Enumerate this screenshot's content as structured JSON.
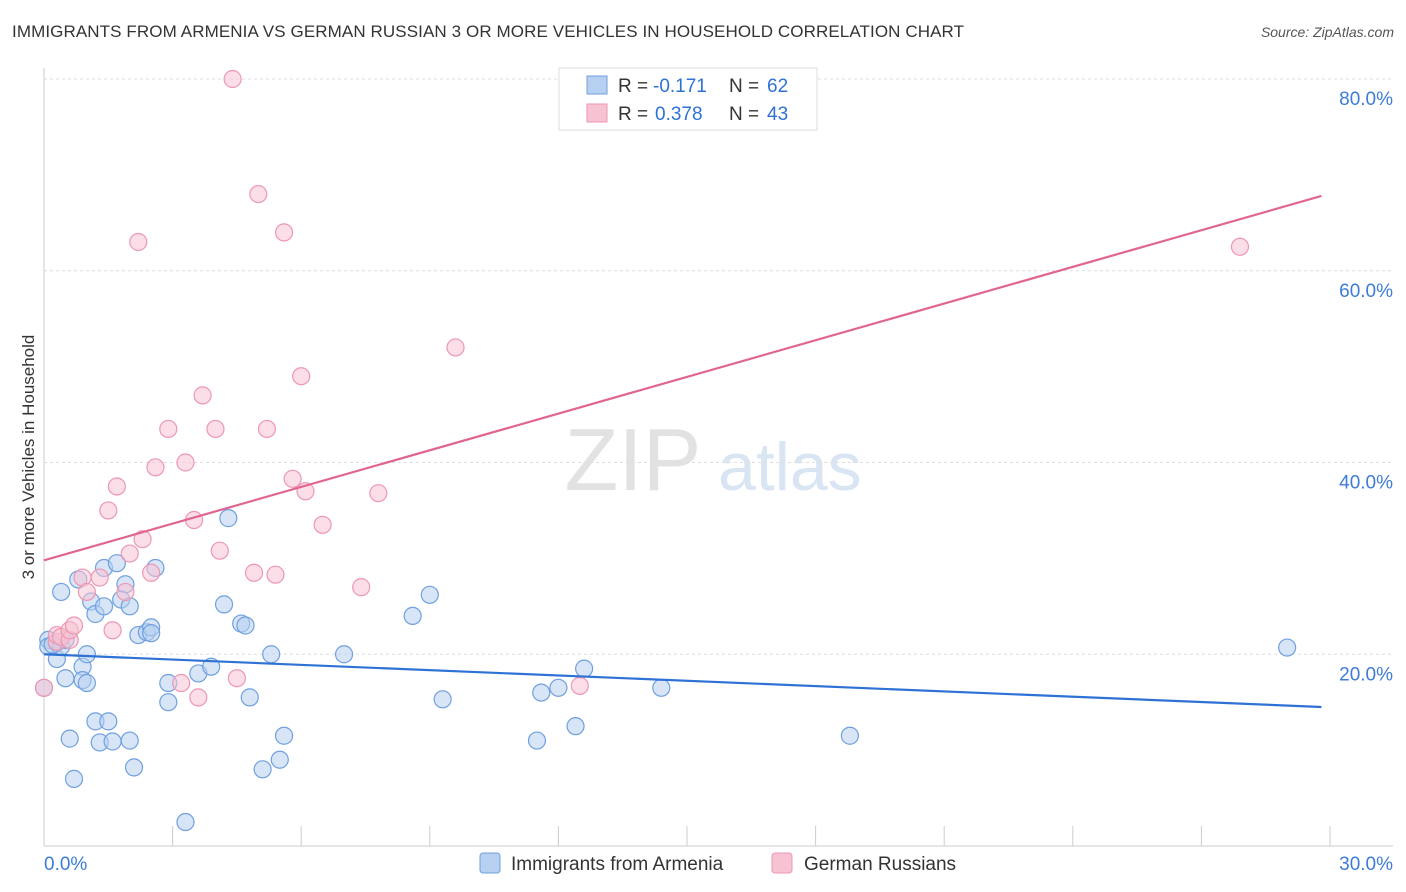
{
  "chart_data": {
    "type": "scatter",
    "title": "IMMIGRANTS FROM ARMENIA VS GERMAN RUSSIAN 3 OR MORE VEHICLES IN HOUSEHOLD CORRELATION CHART",
    "source": "Source: ZipAtlas.com",
    "xlabel": "",
    "ylabel": "3 or more Vehicles in Household",
    "xlim": [
      0,
      30
    ],
    "ylim": [
      0,
      80
    ],
    "x_tick_labels": [
      "0.0%",
      "30.0%"
    ],
    "y_ticks": [
      20,
      40,
      60,
      80
    ],
    "y_tick_labels": [
      "20.0%",
      "40.0%",
      "60.0%",
      "80.0%"
    ],
    "grid": true,
    "watermark": "ZIPatlas",
    "legend_top": [
      {
        "series": "Immigrants from Armenia",
        "r_label": "R =",
        "r_value": "-0.171",
        "n_label": "N =",
        "n_value": "62"
      },
      {
        "series": "German Russians",
        "r_label": "R =",
        "r_value": "0.378",
        "n_label": "N =",
        "n_value": "43"
      }
    ],
    "series": [
      {
        "name": "Immigrants from Armenia",
        "color": "#6fa0e0",
        "fill": "#b7cff1",
        "line_color": "#2f72d6",
        "trend": {
          "x0": 0,
          "y0": 20.0,
          "x1": 29.8,
          "y1": 14.5
        },
        "points": [
          [
            0.1,
            21.5
          ],
          [
            0.1,
            20.8
          ],
          [
            0.3,
            21.2
          ],
          [
            0.3,
            19.5
          ],
          [
            0.4,
            20.8
          ],
          [
            0.4,
            26.5
          ],
          [
            0.5,
            21.5
          ],
          [
            0.5,
            17.5
          ],
          [
            0.6,
            11.2
          ],
          [
            0.7,
            7.0
          ],
          [
            0.8,
            27.8
          ],
          [
            0.9,
            18.7
          ],
          [
            0.9,
            17.3
          ],
          [
            1.0,
            20.0
          ],
          [
            1.0,
            17.0
          ],
          [
            1.1,
            25.5
          ],
          [
            1.2,
            13.0
          ],
          [
            1.2,
            24.2
          ],
          [
            1.3,
            10.8
          ],
          [
            1.4,
            25.0
          ],
          [
            1.4,
            29.0
          ],
          [
            1.5,
            13.0
          ],
          [
            1.7,
            29.5
          ],
          [
            1.9,
            27.3
          ],
          [
            1.8,
            25.7
          ],
          [
            2.0,
            25.0
          ],
          [
            2.0,
            11.0
          ],
          [
            2.1,
            8.2
          ],
          [
            2.2,
            22.0
          ],
          [
            2.4,
            22.3
          ],
          [
            2.5,
            22.8
          ],
          [
            2.5,
            22.2
          ],
          [
            2.6,
            29.0
          ],
          [
            2.9,
            17.0
          ],
          [
            2.9,
            15.0
          ],
          [
            3.3,
            2.5
          ],
          [
            3.6,
            18.0
          ],
          [
            3.9,
            18.7
          ],
          [
            4.2,
            25.2
          ],
          [
            4.3,
            34.2
          ],
          [
            4.6,
            23.2
          ],
          [
            4.7,
            23.0
          ],
          [
            4.8,
            15.5
          ],
          [
            5.1,
            8.0
          ],
          [
            5.3,
            20.0
          ],
          [
            5.5,
            9.0
          ],
          [
            5.6,
            11.5
          ],
          [
            7.0,
            20.0
          ],
          [
            8.6,
            24.0
          ],
          [
            9.0,
            26.2
          ],
          [
            9.3,
            15.3
          ],
          [
            11.5,
            11.0
          ],
          [
            11.6,
            16.0
          ],
          [
            12.0,
            16.5
          ],
          [
            12.4,
            12.5
          ],
          [
            12.6,
            18.5
          ],
          [
            14.4,
            16.5
          ],
          [
            18.8,
            11.5
          ],
          [
            29.0,
            20.7
          ],
          [
            0.0,
            16.5
          ],
          [
            0.2,
            21.0
          ],
          [
            1.6,
            10.9
          ]
        ]
      },
      {
        "name": "German Russians",
        "color": "#ee97b3",
        "fill": "#f7c3d3",
        "line_color": "#e06690",
        "trend": {
          "x0": 0,
          "y0": 29.8,
          "x1": 29.8,
          "y1": 67.8
        },
        "points": [
          [
            0.0,
            16.5
          ],
          [
            0.3,
            21.3
          ],
          [
            0.3,
            22.0
          ],
          [
            0.4,
            21.8
          ],
          [
            0.6,
            21.5
          ],
          [
            0.6,
            22.5
          ],
          [
            0.7,
            23.0
          ],
          [
            0.9,
            28.0
          ],
          [
            1.0,
            26.5
          ],
          [
            1.3,
            28.0
          ],
          [
            1.5,
            35.0
          ],
          [
            1.6,
            22.5
          ],
          [
            1.7,
            37.5
          ],
          [
            1.9,
            26.5
          ],
          [
            2.0,
            30.5
          ],
          [
            2.2,
            63.0
          ],
          [
            2.3,
            32.0
          ],
          [
            2.5,
            28.5
          ],
          [
            2.6,
            39.5
          ],
          [
            2.9,
            43.5
          ],
          [
            3.2,
            17.0
          ],
          [
            3.3,
            40.0
          ],
          [
            3.5,
            34.0
          ],
          [
            3.6,
            15.5
          ],
          [
            3.7,
            47.0
          ],
          [
            4.0,
            43.5
          ],
          [
            4.1,
            30.8
          ],
          [
            4.4,
            80.0
          ],
          [
            4.5,
            17.5
          ],
          [
            4.9,
            28.5
          ],
          [
            5.0,
            68.0
          ],
          [
            5.2,
            43.5
          ],
          [
            5.4,
            28.3
          ],
          [
            5.6,
            64.0
          ],
          [
            5.8,
            38.3
          ],
          [
            6.0,
            49.0
          ],
          [
            6.1,
            37.0
          ],
          [
            6.5,
            33.5
          ],
          [
            7.4,
            27.0
          ],
          [
            7.8,
            36.8
          ],
          [
            9.6,
            52.0
          ],
          [
            12.5,
            16.7
          ],
          [
            27.9,
            62.5
          ]
        ]
      }
    ],
    "bottom_legend": [
      "Immigrants from Armenia",
      "German Russians"
    ]
  }
}
